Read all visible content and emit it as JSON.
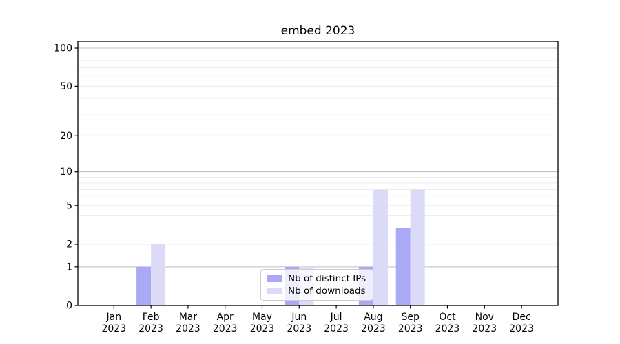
{
  "title": "embed 2023",
  "chart_data": {
    "type": "bar",
    "title": "embed 2023",
    "categories": [
      "Jan 2023",
      "Feb 2023",
      "Mar 2023",
      "Apr 2023",
      "May 2023",
      "Jun 2023",
      "Jul 2023",
      "Aug 2023",
      "Sep 2023",
      "Oct 2023",
      "Nov 2023",
      "Dec 2023"
    ],
    "series": [
      {
        "name": "Nb of distinct IPs",
        "color": "#a9a9f6",
        "values": [
          0,
          1,
          0,
          0,
          0,
          1,
          0,
          1,
          3,
          0,
          0,
          0
        ]
      },
      {
        "name": "Nb of downloads",
        "color": "#dbdbf8",
        "values": [
          0,
          2,
          0,
          0,
          0,
          1,
          0,
          7,
          7,
          0,
          0,
          0
        ]
      }
    ],
    "yscale": "log1p",
    "ylim": [
      0,
      113
    ],
    "y_ticks": [
      0,
      1,
      2,
      5,
      10,
      20,
      50,
      100
    ],
    "y_tick_labels": [
      "0",
      "1",
      "2",
      "5",
      "10",
      "20",
      "50",
      "100"
    ],
    "grid": true,
    "major_grid_values": [
      1,
      10,
      100
    ],
    "minor_grid_values": [
      2,
      3,
      4,
      5,
      6,
      7,
      8,
      9,
      20,
      30,
      40,
      50,
      60,
      70,
      80,
      90
    ],
    "legend_position": "lower center",
    "colors": {
      "major_grid": "#bdbdbd",
      "minor_grid": "#ececec",
      "spine": "#000000",
      "tick": "#000000",
      "text": "#000000",
      "background": "#ffffff"
    }
  }
}
